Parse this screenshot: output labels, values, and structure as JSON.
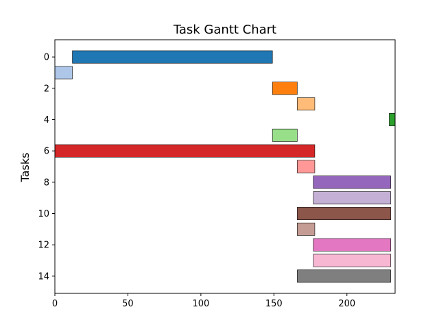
{
  "chart_data": {
    "type": "bar",
    "orientation": "horizontal-gantt",
    "title": "Task Gantt Chart",
    "xlabel": "",
    "ylabel": "Tasks",
    "xlim": [
      0,
      233
    ],
    "ylim": [
      15.1,
      -1.1
    ],
    "xticks": [
      0,
      50,
      100,
      150,
      200
    ],
    "yticks": [
      0,
      2,
      4,
      6,
      8,
      10,
      12,
      14
    ],
    "grid": false,
    "tasks": [
      {
        "task": 0,
        "start": 12,
        "end": 149,
        "color": "#1f77b4"
      },
      {
        "task": 1,
        "start": 0,
        "end": 12,
        "color": "#aec7e8"
      },
      {
        "task": 2,
        "start": 149,
        "end": 166,
        "color": "#ff7f0e"
      },
      {
        "task": 3,
        "start": 166,
        "end": 178,
        "color": "#ffbb78"
      },
      {
        "task": 4,
        "start": 229,
        "end": 233,
        "color": "#2ca02c"
      },
      {
        "task": 5,
        "start": 149,
        "end": 166,
        "color": "#98df8a"
      },
      {
        "task": 6,
        "start": 0,
        "end": 178,
        "color": "#d62728"
      },
      {
        "task": 7,
        "start": 166,
        "end": 178,
        "color": "#ff9896"
      },
      {
        "task": 8,
        "start": 177,
        "end": 230,
        "color": "#9467bd"
      },
      {
        "task": 9,
        "start": 177,
        "end": 230,
        "color": "#c5b0d5"
      },
      {
        "task": 10,
        "start": 166,
        "end": 230,
        "color": "#8c564b"
      },
      {
        "task": 11,
        "start": 166,
        "end": 178,
        "color": "#c49c94"
      },
      {
        "task": 12,
        "start": 177,
        "end": 230,
        "color": "#e377c2"
      },
      {
        "task": 13,
        "start": 177,
        "end": 230,
        "color": "#f7b6d2"
      },
      {
        "task": 14,
        "start": 166,
        "end": 230,
        "color": "#7f7f7f"
      }
    ]
  }
}
